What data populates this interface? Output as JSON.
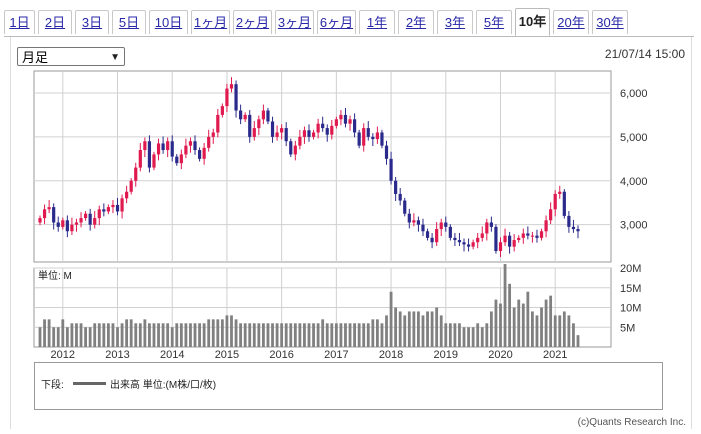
{
  "tabs": [
    {
      "label": "1日",
      "active": false
    },
    {
      "label": "2日",
      "active": false
    },
    {
      "label": "3日",
      "active": false
    },
    {
      "label": "5日",
      "active": false
    },
    {
      "label": "10日",
      "active": false
    },
    {
      "label": "1ヶ月",
      "active": false
    },
    {
      "label": "2ヶ月",
      "active": false
    },
    {
      "label": "3ヶ月",
      "active": false
    },
    {
      "label": "6ヶ月",
      "active": false
    },
    {
      "label": "1年",
      "active": false
    },
    {
      "label": "2年",
      "active": false
    },
    {
      "label": "3年",
      "active": false
    },
    {
      "label": "5年",
      "active": false
    },
    {
      "label": "10年",
      "active": true
    },
    {
      "label": "20年",
      "active": false
    },
    {
      "label": "30年",
      "active": false
    }
  ],
  "period_select": {
    "value": "月足"
  },
  "datetime": "21/07/14 15:00",
  "colors": {
    "up": "#e0194f",
    "down": "#2a2a8c",
    "volume": "#808080",
    "grid": "#d0d0d0"
  },
  "chart_data": [
    {
      "type": "candlestick",
      "y_ticks": [
        3000,
        4000,
        5000,
        6000
      ],
      "y_tick_labels": [
        "3,000",
        "4,000",
        "5,000",
        "6,000"
      ],
      "ylim": [
        2150,
        6500
      ],
      "x_tick_labels": [
        "2012",
        "2013",
        "2014",
        "2015",
        "2016",
        "2017",
        "2018",
        "2019",
        "2020",
        "2021"
      ],
      "grid": true,
      "series_close_monthly": [
        3150,
        3350,
        3400,
        3050,
        2950,
        3100,
        2850,
        3000,
        3050,
        3150,
        3250,
        3000,
        3150,
        3350,
        3300,
        3400,
        3450,
        3300,
        3600,
        3750,
        4000,
        4300,
        4700,
        4900,
        4300,
        4600,
        4850,
        4700,
        4900,
        4550,
        4400,
        4600,
        4800,
        4900,
        4700,
        4500,
        4750,
        5000,
        5100,
        5500,
        5700,
        6100,
        6200,
        5600,
        5400,
        5500,
        5000,
        5200,
        5400,
        5600,
        5350,
        5000,
        5100,
        5200,
        4900,
        4600,
        4800,
        5000,
        5150,
        5000,
        5100,
        5300,
        5200,
        5050,
        5250,
        5400,
        5500,
        5300,
        5400,
        5100,
        4800,
        5200,
        5000,
        4950,
        5100,
        4800,
        4500,
        4000,
        3700,
        3550,
        3250,
        3050,
        3100,
        3000,
        2850,
        2700,
        2600,
        2900,
        3050,
        2950,
        2700,
        2650,
        2600,
        2550,
        2500,
        2600,
        2700,
        2800,
        3050,
        2950,
        2400,
        2600,
        2750,
        2500,
        2650,
        2700,
        2800,
        2750,
        2750,
        2700,
        2850,
        3100,
        3350,
        3700,
        3750,
        3200,
        2950,
        2900,
        2850
      ]
    },
    {
      "type": "bar",
      "title": "単位: M",
      "y_ticks": [
        5,
        10,
        15,
        20
      ],
      "y_tick_labels": [
        "5M",
        "10M",
        "15M",
        "20M"
      ],
      "ylim": [
        0,
        20
      ],
      "volume_monthly": [
        5,
        7,
        7,
        5,
        5,
        7,
        5,
        6,
        6,
        6,
        5,
        5,
        6,
        6,
        6,
        6,
        6,
        5,
        6,
        7,
        7,
        6,
        6,
        7,
        6,
        6,
        6,
        6,
        6,
        5,
        6,
        6,
        6,
        6,
        6,
        6,
        6,
        7,
        7,
        7,
        7,
        8,
        8,
        7,
        6,
        6,
        6,
        6,
        6,
        6,
        6,
        6,
        6,
        6,
        6,
        6,
        6,
        6,
        6,
        6,
        6,
        6,
        7,
        6,
        6,
        6,
        6,
        6,
        6,
        6,
        6,
        6,
        6,
        7,
        7,
        6,
        8,
        14,
        10,
        9,
        8,
        9,
        9,
        9,
        8,
        9,
        9,
        10,
        8,
        6,
        6,
        6,
        6,
        5,
        5,
        5,
        6,
        5,
        6,
        9,
        12,
        11,
        21,
        16,
        10,
        12,
        11,
        14,
        9,
        8,
        10,
        12,
        13,
        8,
        8,
        9,
        8,
        6,
        3
      ]
    }
  ],
  "legend": {
    "prefix": "下段:",
    "series_label": "出来高 単位:(M株/口/枚)"
  },
  "copyright": "(c)Quants Research Inc."
}
